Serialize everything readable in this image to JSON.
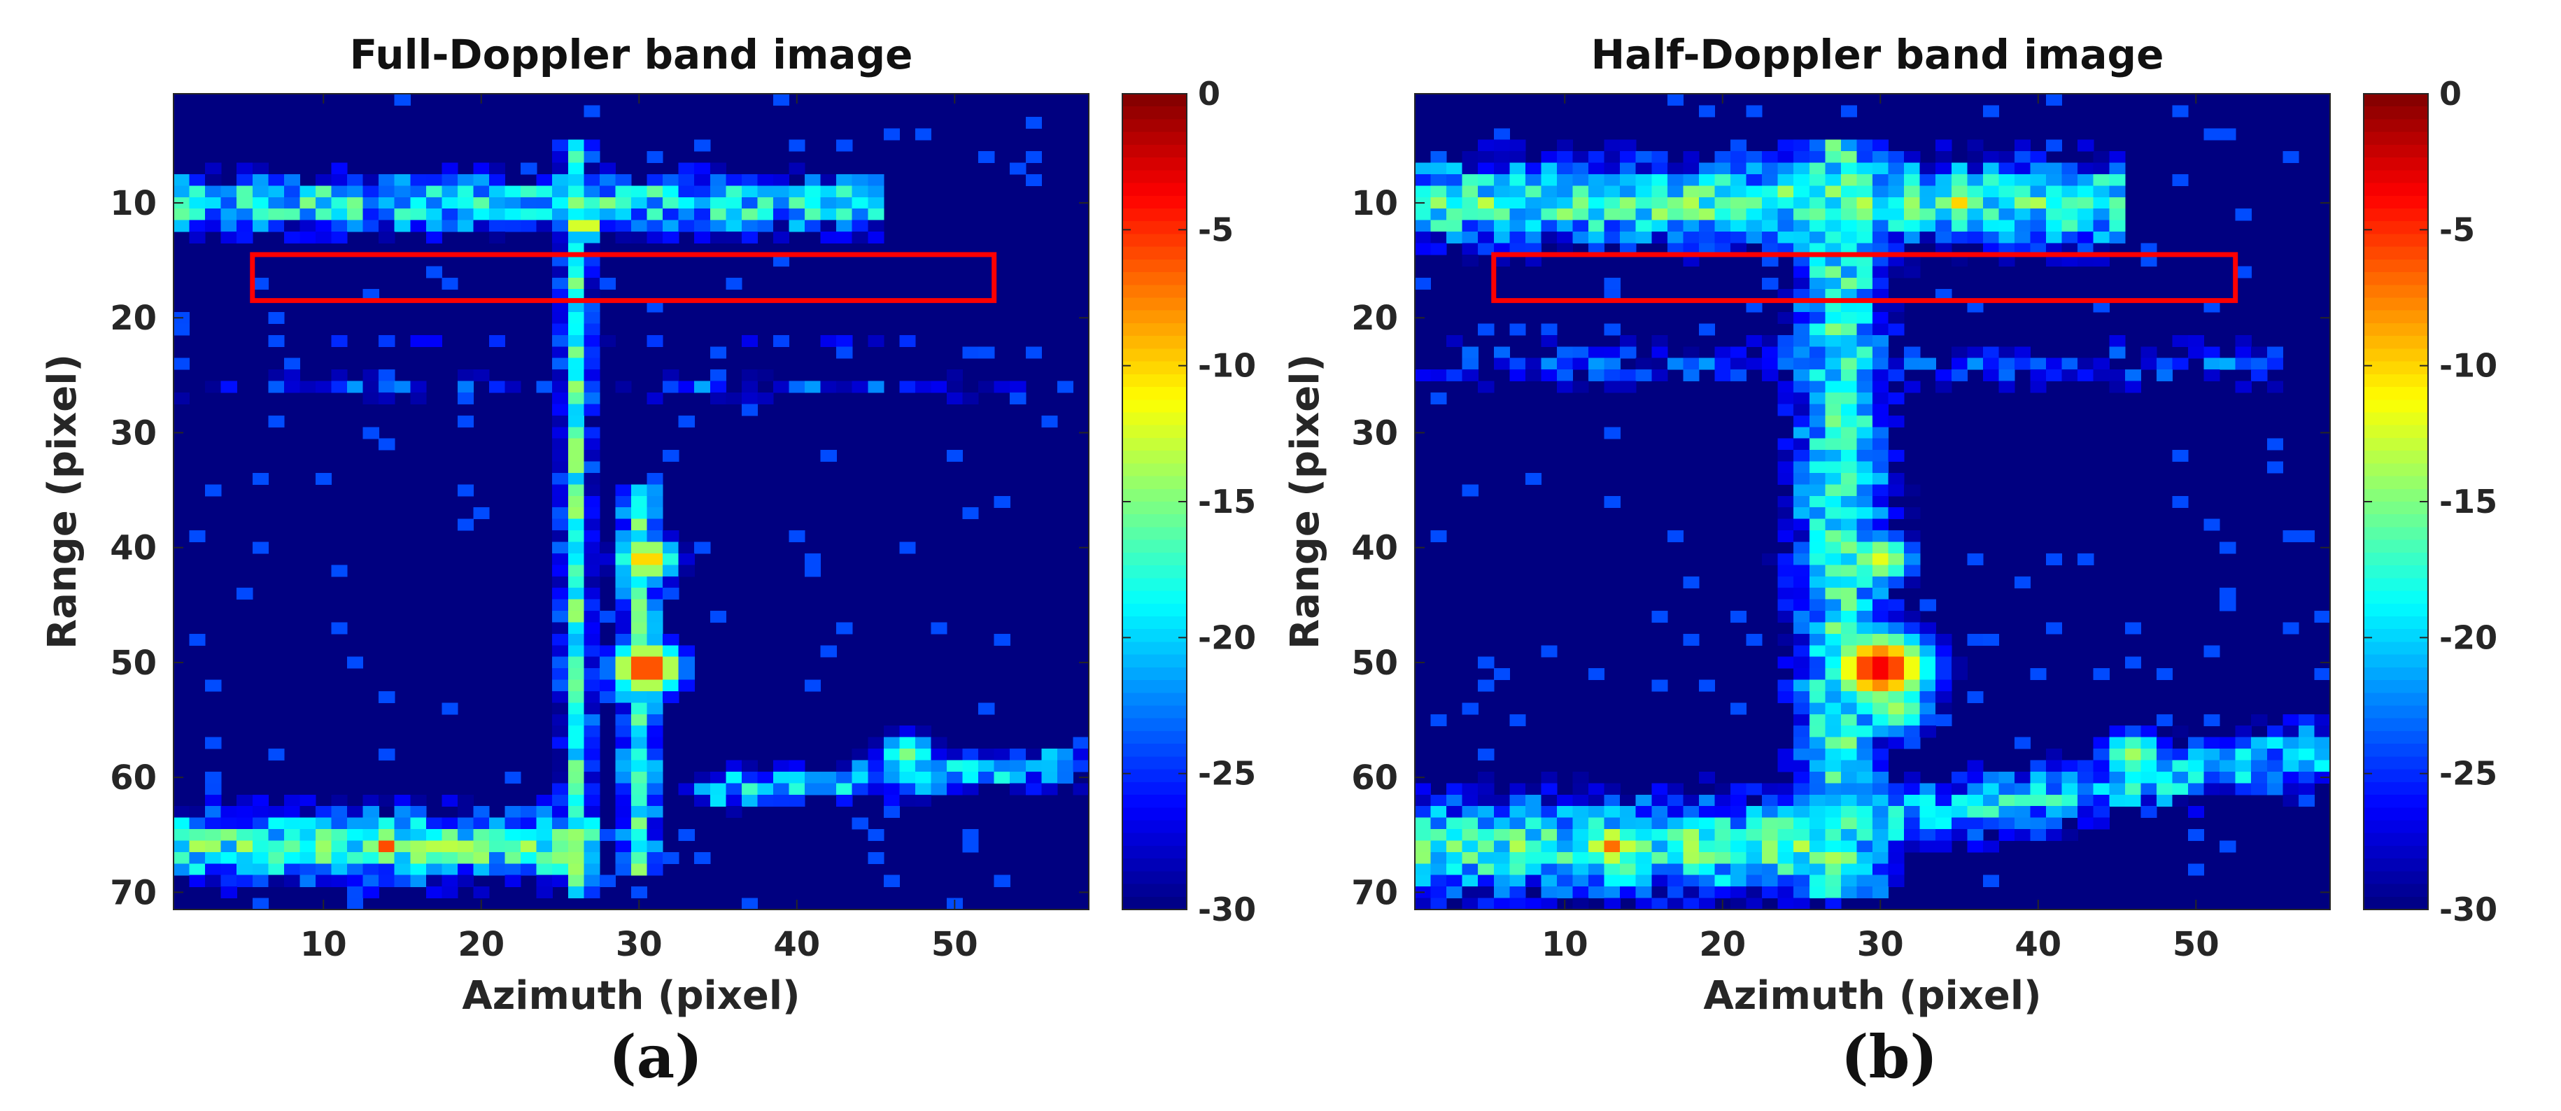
{
  "chart_data": [
    {
      "type": "heatmap",
      "panel_label": "(a)",
      "title": "Full-Doppler band image",
      "xlabel": "Azimuth (pixel)",
      "ylabel": "Range (pixel)",
      "xlim": [
        0.5,
        58.5
      ],
      "ylim": [
        0.5,
        71.5
      ],
      "xticks": [
        10,
        20,
        30,
        40,
        50
      ],
      "yticks": [
        10,
        20,
        30,
        40,
        50,
        60,
        70
      ],
      "y_direction": "reversed",
      "colormap": "jet",
      "clim": [
        -30,
        0
      ],
      "colorbar_ticks": [
        0,
        -5,
        -10,
        -15,
        -20,
        -25,
        -30
      ],
      "colorbar_tick_labels": [
        "0",
        "-5",
        "-10",
        "-15",
        "-20",
        "-25",
        "-30"
      ],
      "background_db": -30,
      "annotation_box": {
        "color": "#ff0000",
        "x": [
          5.5,
          52.5
        ],
        "y": [
          14.5,
          18.5
        ]
      },
      "features": [
        {
          "kind": "hline",
          "row": 10,
          "col_start": 1,
          "col_end": 45,
          "thickness": 2.5,
          "peak_db": -14,
          "patchiness": 0.55
        },
        {
          "kind": "hline",
          "row": 26,
          "col_start": 1,
          "col_end": 55,
          "thickness": 1.2,
          "peak_db": -21,
          "patchiness": 0.7
        },
        {
          "kind": "hline",
          "row": 22,
          "col_start": 10,
          "col_end": 55,
          "thickness": 1.0,
          "peak_db": -24,
          "patchiness": 0.8
        },
        {
          "kind": "vline",
          "col": 26,
          "row_start": 5,
          "row_end": 70,
          "thickness": 1.0,
          "peak_db": -14,
          "patchiness": 0.4
        },
        {
          "kind": "vline",
          "col": 30,
          "row_start": 35,
          "row_end": 68,
          "thickness": 1.2,
          "peak_db": -14,
          "patchiness": 0.4
        },
        {
          "kind": "hline",
          "row": 66,
          "col_start": 1,
          "col_end": 27,
          "thickness": 3.0,
          "peak_db": -13,
          "patchiness": 0.5
        },
        {
          "kind": "diag",
          "from": [
            35,
            61
          ],
          "to": [
            57,
            59
          ],
          "thickness": 1.8,
          "peak_db": -16,
          "patchiness": 0.5
        },
        {
          "kind": "blob",
          "col": 30.5,
          "row": 50.5,
          "radius": 1.8,
          "peak_db": -4
        },
        {
          "kind": "blob",
          "col": 30.5,
          "row": 41,
          "radius": 1.8,
          "peak_db": -9
        },
        {
          "kind": "blob",
          "col": 26.5,
          "row": 12,
          "radius": 1.2,
          "peak_db": -10
        },
        {
          "kind": "blob",
          "col": 14,
          "row": 66,
          "radius": 1.2,
          "peak_db": -6
        },
        {
          "kind": "blob",
          "col": 47,
          "row": 58,
          "radius": 2.0,
          "peak_db": -15
        }
      ]
    },
    {
      "type": "heatmap",
      "panel_label": "(b)",
      "title": "Half-Doppler band image",
      "xlabel": "Azimuth (pixel)",
      "ylabel": "Range (pixel)",
      "xlim": [
        0.5,
        58.5
      ],
      "ylim": [
        0.5,
        71.5
      ],
      "xticks": [
        10,
        20,
        30,
        40,
        50
      ],
      "yticks": [
        10,
        20,
        30,
        40,
        50,
        60,
        70
      ],
      "y_direction": "reversed",
      "colormap": "jet",
      "clim": [
        -30,
        0
      ],
      "colorbar_ticks": [
        0,
        -5,
        -10,
        -15,
        -20,
        -25,
        -30
      ],
      "colorbar_tick_labels": [
        "0",
        "-5",
        "-10",
        "-15",
        "-20",
        "-25",
        "-30"
      ],
      "background_db": -30,
      "annotation_box": {
        "color": "#ff0000",
        "x": [
          5.5,
          52.5
        ],
        "y": [
          14.5,
          18.5
        ]
      },
      "features": [
        {
          "kind": "hline",
          "row": 10,
          "col_start": 1,
          "col_end": 45,
          "thickness": 3.5,
          "peak_db": -13,
          "patchiness": 0.5
        },
        {
          "kind": "hline",
          "row": 24,
          "col_start": 1,
          "col_end": 55,
          "thickness": 2.5,
          "peak_db": -21,
          "patchiness": 0.65
        },
        {
          "kind": "vline",
          "col": 27.5,
          "row_start": 5,
          "row_end": 70,
          "thickness": 3.0,
          "peak_db": -14,
          "patchiness": 0.45
        },
        {
          "kind": "hline",
          "row": 66,
          "col_start": 1,
          "col_end": 27,
          "thickness": 4.0,
          "peak_db": -13,
          "patchiness": 0.5
        },
        {
          "kind": "diag",
          "from": [
            30,
            64
          ],
          "to": [
            57,
            58
          ],
          "thickness": 3.0,
          "peak_db": -16,
          "patchiness": 0.5
        },
        {
          "kind": "blob",
          "col": 30,
          "row": 50.5,
          "radius": 2.5,
          "peak_db": -3
        },
        {
          "kind": "blob",
          "col": 30,
          "row": 41,
          "radius": 2.2,
          "peak_db": -12
        },
        {
          "kind": "blob",
          "col": 35,
          "row": 10,
          "radius": 1.5,
          "peak_db": -10
        },
        {
          "kind": "blob",
          "col": 13,
          "row": 66,
          "radius": 1.5,
          "peak_db": -7
        },
        {
          "kind": "blob",
          "col": 46,
          "row": 58,
          "radius": 2.2,
          "peak_db": -14
        },
        {
          "kind": "blob",
          "col": 27.5,
          "row": 27,
          "radius": 2.5,
          "peak_db": -16
        },
        {
          "kind": "blob",
          "col": 31,
          "row": 54,
          "radius": 2.5,
          "peak_db": -14
        }
      ]
    }
  ]
}
